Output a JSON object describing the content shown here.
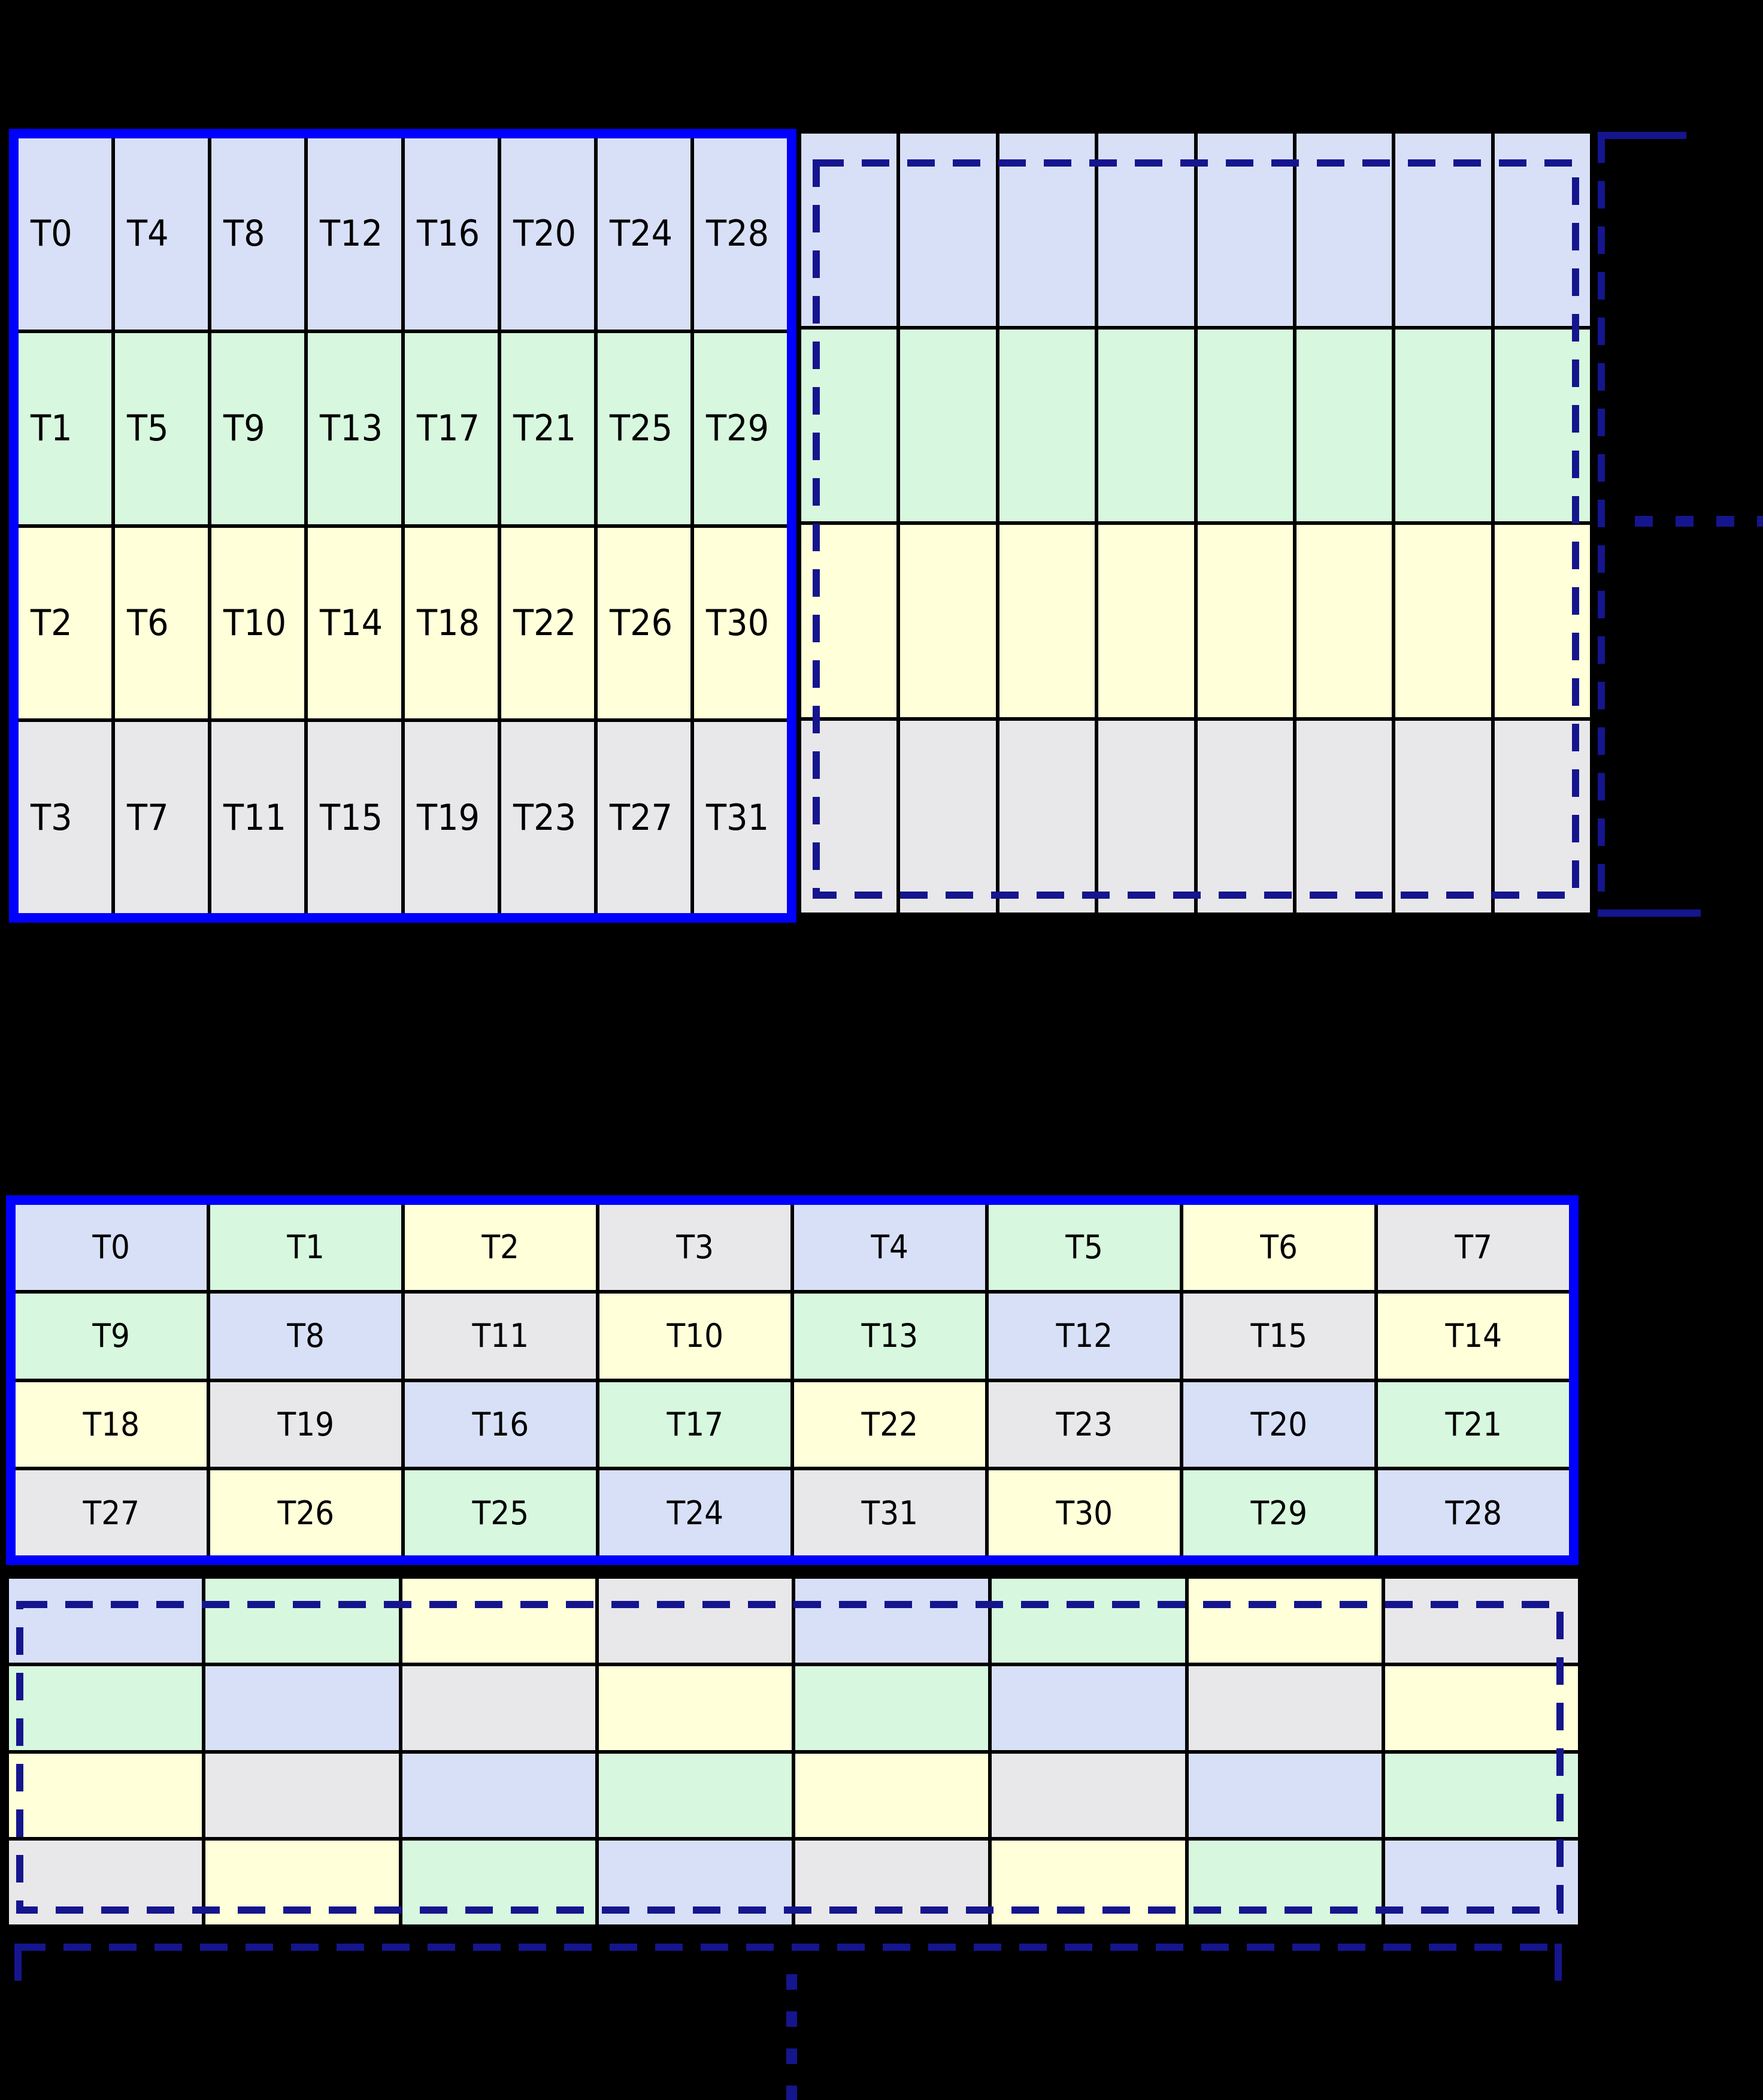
{
  "palette": {
    "background": "#000000",
    "cell_colors": [
      "#d8e0f8",
      "#d7f8de",
      "#ffffd9",
      "#e8e8ea"
    ],
    "grid_line": "#000000",
    "solid_border_blue": "#0000ff",
    "dashed_navy": "#15158e",
    "label_color": "#000000"
  },
  "top_grid": {
    "rows": 4,
    "cols": 8,
    "labels": [
      [
        "T0",
        "T4",
        "T8",
        "T12",
        "T16",
        "T20",
        "T24",
        "T28"
      ],
      [
        "T1",
        "T5",
        "T9",
        "T13",
        "T17",
        "T21",
        "T25",
        "T29"
      ],
      [
        "T2",
        "T6",
        "T10",
        "T14",
        "T18",
        "T22",
        "T26",
        "T30"
      ],
      [
        "T3",
        "T7",
        "T11",
        "T15",
        "T19",
        "T23",
        "T27",
        "T31"
      ]
    ],
    "row_colors": [
      0,
      1,
      2,
      3
    ]
  },
  "top_ghost_grid": {
    "rows": 4,
    "cols": 8,
    "row_colors": [
      0,
      1,
      2,
      3
    ]
  },
  "bottom_grid": {
    "rows": 4,
    "cols": 8,
    "labels": [
      [
        "T0",
        "T1",
        "T2",
        "T3",
        "T4",
        "T5",
        "T6",
        "T7"
      ],
      [
        "T9",
        "T8",
        "T11",
        "T10",
        "T13",
        "T12",
        "T15",
        "T14"
      ],
      [
        "T18",
        "T19",
        "T16",
        "T17",
        "T22",
        "T23",
        "T20",
        "T21"
      ],
      [
        "T27",
        "T26",
        "T25",
        "T24",
        "T31",
        "T30",
        "T29",
        "T28"
      ]
    ],
    "cell_colors": [
      [
        0,
        1,
        2,
        3,
        0,
        1,
        2,
        3
      ],
      [
        1,
        0,
        3,
        2,
        1,
        0,
        3,
        2
      ],
      [
        2,
        3,
        0,
        1,
        2,
        3,
        0,
        1
      ],
      [
        3,
        2,
        1,
        0,
        3,
        2,
        1,
        0
      ]
    ]
  },
  "bottom_ghost_grid": {
    "rows": 4,
    "cols": 8,
    "cell_colors": [
      [
        0,
        1,
        2,
        3,
        0,
        1,
        2,
        3
      ],
      [
        1,
        0,
        3,
        2,
        1,
        0,
        3,
        2
      ],
      [
        2,
        3,
        0,
        1,
        2,
        3,
        0,
        1
      ],
      [
        3,
        2,
        1,
        0,
        3,
        2,
        1,
        0
      ]
    ]
  }
}
